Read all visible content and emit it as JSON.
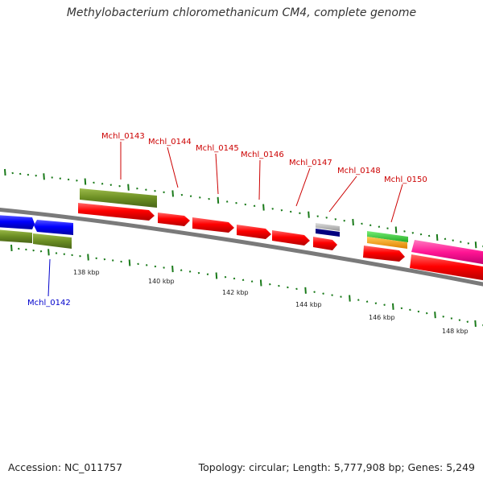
{
  "title": "Methylobacterium chloromethanicum CM4, complete genome",
  "footer": {
    "accession": "Accession: NC_011757",
    "summary": "Topology: circular; Length: 5,777,908 bp; Genes: 5,249"
  },
  "ruler_labels": [
    "138 kbp",
    "140 kbp",
    "142 kbp",
    "144 kbp",
    "146 kbp",
    "148 kbp"
  ],
  "genes": [
    {
      "name": "Mchl_0142",
      "color": "#0000cc"
    },
    {
      "name": "Mchl_0143",
      "color": "#cc0000"
    },
    {
      "name": "Mchl_0144",
      "color": "#cc0000"
    },
    {
      "name": "Mchl_0145",
      "color": "#cc0000"
    },
    {
      "name": "Mchl_0146",
      "color": "#cc0000"
    },
    {
      "name": "Mchl_0147",
      "color": "#cc0000"
    },
    {
      "name": "Mchl_0148",
      "color": "#cc0000"
    },
    {
      "name": "Mchl_0150",
      "color": "#cc0000"
    }
  ],
  "colors": {
    "cds_red": "#ff0000",
    "cds_blue": "#0000ff",
    "gene_olive": "#6b8e23",
    "tick_green": "#1a7a1a",
    "backbone": "#888888",
    "gray_feature": "#aaaaaa",
    "navy_feature": "#000080",
    "green_feature": "#33cc33",
    "orange_feature": "#ff9900",
    "magenta_feature": "#ff1493"
  }
}
